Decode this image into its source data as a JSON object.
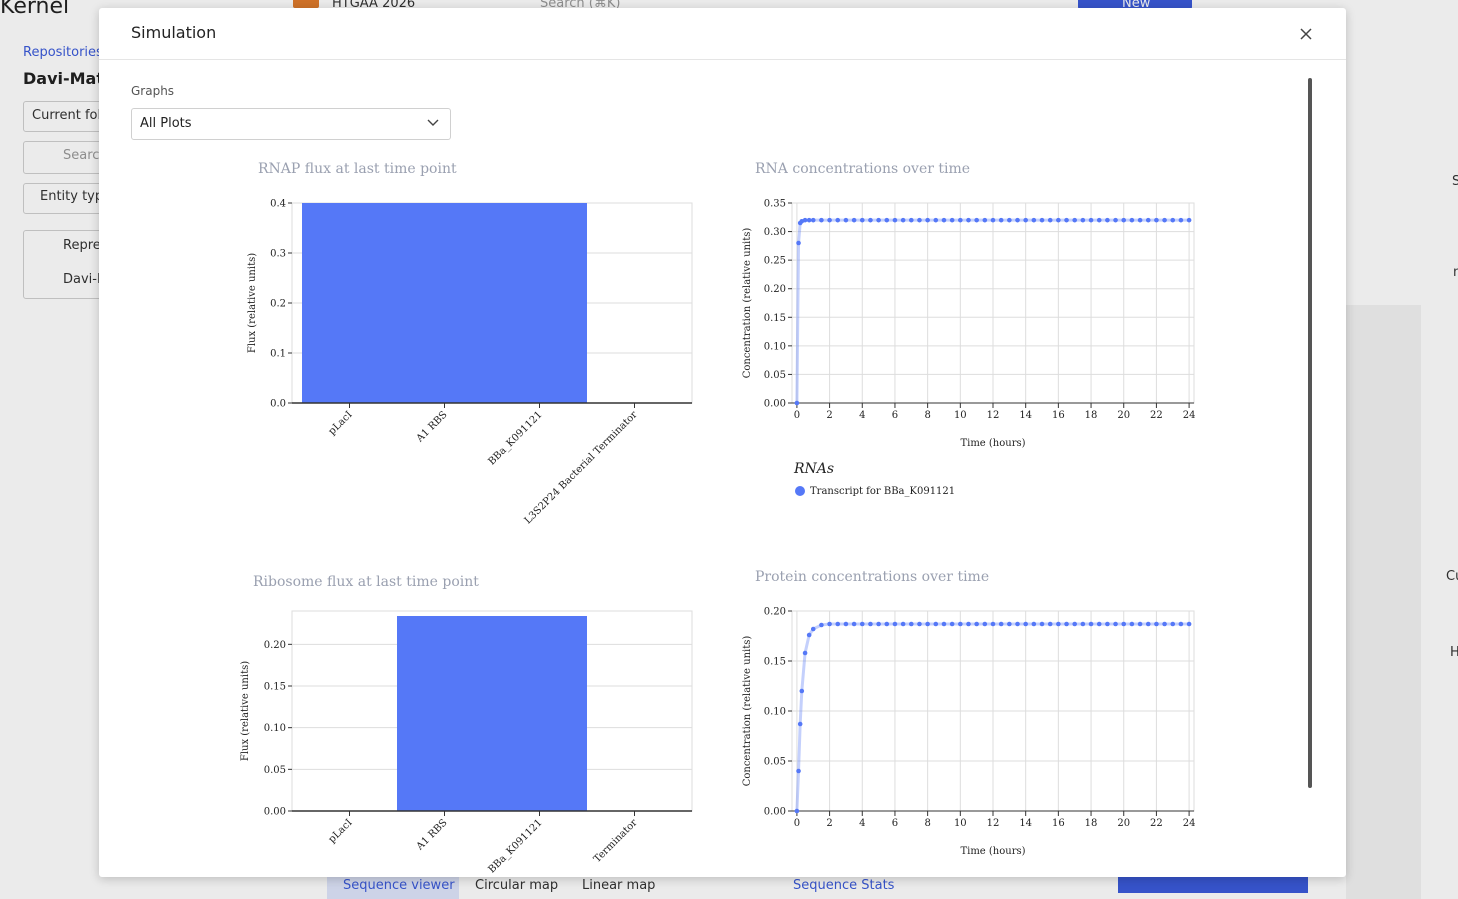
{
  "background": {
    "brand": "Kernel",
    "workspace": "HTGAA 2026",
    "search": "Search (⌘K)",
    "new_button": "New",
    "breadcrumb": "Repositories",
    "repo_name": "Davi-Matto",
    "folder_select": "Current fol",
    "sidebar_search": "Search",
    "entity_filter": "Entity type",
    "items": [
      "Repre",
      "Davi-M"
    ],
    "tabs": [
      "Sequence viewer",
      "Circular map",
      "Linear map"
    ],
    "stats": "Sequence Stats",
    "side_labels": [
      "S",
      "n",
      "Cu",
      "H"
    ]
  },
  "modal": {
    "title": "Simulation",
    "graphs_label": "Graphs",
    "select_value": "All Plots"
  },
  "chart_data": [
    {
      "type": "bar",
      "title": "RNAP flux at last time point",
      "ylabel": "Flux (relative units)",
      "categories": [
        "pLacI",
        "A1 RBS",
        "BBa_K091121",
        "L3S2P24 Bacterial Terminator"
      ],
      "values": [
        0.4,
        0.4,
        0.4,
        0
      ],
      "color": "#5578f7",
      "ylim": [
        0,
        0.4
      ],
      "yticks": [
        {
          "value": 0,
          "label": "0.0"
        },
        0.1,
        0.2,
        0.3,
        0.4
      ],
      "grid": true
    },
    {
      "type": "line",
      "title": "RNA concentrations over time",
      "xlabel": "Time (hours)",
      "ylabel": "Concentration (relative units)",
      "legend_title": "RNAs",
      "x": [
        0,
        0.1,
        0.2,
        0.3,
        0.5,
        0.75,
        1,
        1.5,
        2,
        2.5,
        3,
        3.5,
        4,
        4.5,
        5,
        5.5,
        6,
        6.5,
        7,
        7.5,
        8,
        8.5,
        9,
        9.5,
        10,
        10.5,
        11,
        11.5,
        12,
        12.5,
        13,
        13.5,
        14,
        14.5,
        15,
        15.5,
        16,
        16.5,
        17,
        17.5,
        18,
        18.5,
        19,
        19.5,
        20,
        20.5,
        21,
        21.5,
        22,
        22.5,
        23,
        23.5,
        24
      ],
      "series": [
        {
          "name": "Transcript for BBa_K091121",
          "color": "#5578f7",
          "values": [
            0,
            0.28,
            0.315,
            0.318,
            0.32,
            0.32,
            0.32,
            0.32,
            0.32,
            0.32,
            0.32,
            0.32,
            0.32,
            0.32,
            0.32,
            0.32,
            0.32,
            0.32,
            0.32,
            0.32,
            0.32,
            0.32,
            0.32,
            0.32,
            0.32,
            0.32,
            0.32,
            0.32,
            0.32,
            0.32,
            0.32,
            0.32,
            0.32,
            0.32,
            0.32,
            0.32,
            0.32,
            0.32,
            0.32,
            0.32,
            0.32,
            0.32,
            0.32,
            0.32,
            0.32,
            0.32,
            0.32,
            0.32,
            0.32,
            0.32,
            0.32,
            0.32,
            0.32
          ]
        }
      ],
      "xlim": [
        -0.3,
        24.3
      ],
      "xticks": [
        0,
        2,
        4,
        6,
        8,
        10,
        12,
        14,
        16,
        18,
        20,
        22,
        24
      ],
      "ylim": [
        0,
        0.35
      ],
      "yticks": [
        {
          "value": 0,
          "label": "0.00"
        },
        0.05,
        {
          "value": 0.1,
          "label": "0.10"
        },
        0.15,
        {
          "value": 0.2,
          "label": "0.20"
        },
        0.25,
        {
          "value": 0.3,
          "label": "0.30"
        },
        0.35
      ],
      "grid": true
    },
    {
      "type": "bar",
      "title": "Ribosome flux at last time point",
      "ylabel": "Flux (relative units)",
      "categories": [
        "pLacI",
        "A1 RBS",
        "BBa_K091121",
        "Terminator"
      ],
      "values": [
        0,
        0.234,
        0.234,
        0
      ],
      "color": "#5578f7",
      "ylim": [
        0,
        0.24
      ],
      "yticks": [
        {
          "value": 0,
          "label": "0.00"
        },
        0.05,
        {
          "value": 0.1,
          "label": "0.10"
        },
        0.15,
        {
          "value": 0.2,
          "label": "0.20"
        }
      ],
      "grid": true
    },
    {
      "type": "line",
      "title": "Protein concentrations over time",
      "xlabel": "Time (hours)",
      "ylabel": "Concentration (relative units)",
      "x": [
        0,
        0.1,
        0.2,
        0.3,
        0.5,
        0.75,
        1,
        1.5,
        2,
        2.5,
        3,
        3.5,
        4,
        4.5,
        5,
        5.5,
        6,
        6.5,
        7,
        7.5,
        8,
        8.5,
        9,
        9.5,
        10,
        10.5,
        11,
        11.5,
        12,
        12.5,
        13,
        13.5,
        14,
        14.5,
        15,
        15.5,
        16,
        16.5,
        17,
        17.5,
        18,
        18.5,
        19,
        19.5,
        20,
        20.5,
        21,
        21.5,
        22,
        22.5,
        23,
        23.5,
        24
      ],
      "series": [
        {
          "color": "#5578f7",
          "values": [
            0,
            0.04,
            0.087,
            0.12,
            0.158,
            0.176,
            0.182,
            0.186,
            0.187,
            0.187,
            0.187,
            0.187,
            0.187,
            0.187,
            0.187,
            0.187,
            0.187,
            0.187,
            0.187,
            0.187,
            0.187,
            0.187,
            0.187,
            0.187,
            0.187,
            0.187,
            0.187,
            0.187,
            0.187,
            0.187,
            0.187,
            0.187,
            0.187,
            0.187,
            0.187,
            0.187,
            0.187,
            0.187,
            0.187,
            0.187,
            0.187,
            0.187,
            0.187,
            0.187,
            0.187,
            0.187,
            0.187,
            0.187,
            0.187,
            0.187,
            0.187,
            0.187,
            0.187
          ]
        }
      ],
      "xlim": [
        -0.3,
        24.3
      ],
      "xticks": [
        0,
        2,
        4,
        6,
        8,
        10,
        12,
        14,
        16,
        18,
        20,
        22,
        24
      ],
      "ylim": [
        0,
        0.2
      ],
      "yticks": [
        {
          "value": 0,
          "label": "0.00"
        },
        0.05,
        {
          "value": 0.1,
          "label": "0.10"
        },
        0.15,
        {
          "value": 0.2,
          "label": "0.20"
        }
      ],
      "grid": true
    }
  ]
}
